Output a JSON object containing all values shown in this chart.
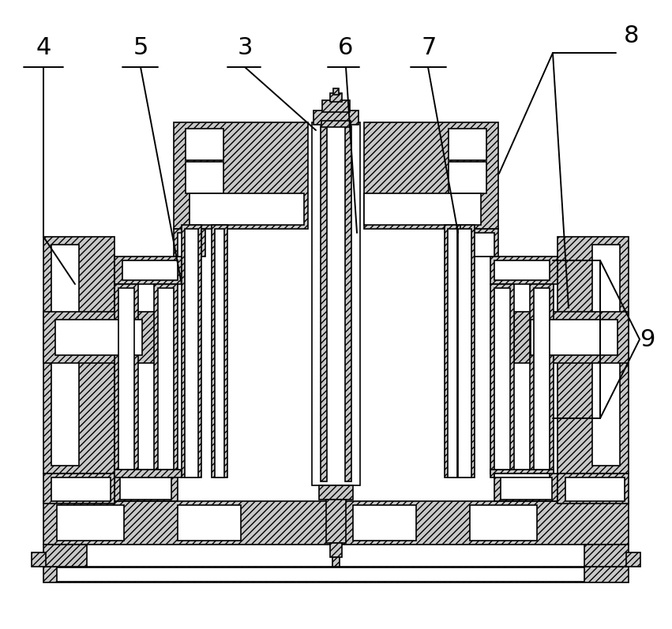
{
  "bg_color": "#ffffff",
  "lc": "#000000",
  "hfc": "#c8c8c8",
  "wfc": "#ffffff",
  "lw": 1.2,
  "hatch": "////",
  "label_fs": 22,
  "figsize": [
    8.51,
    7.97
  ],
  "dpi": 100
}
